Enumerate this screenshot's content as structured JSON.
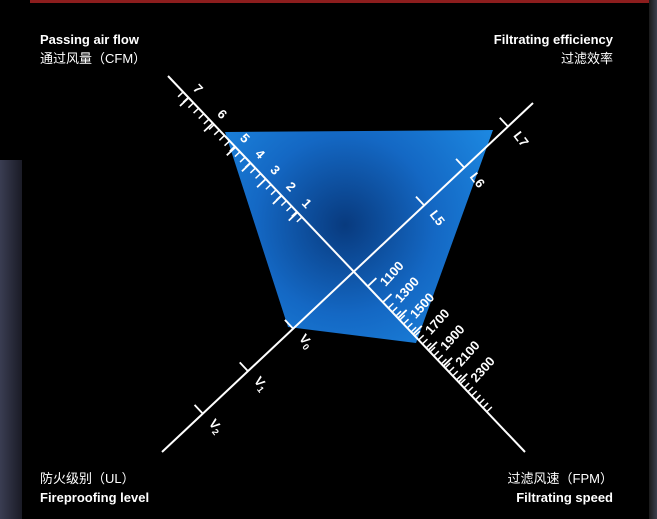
{
  "labels": {
    "top_left": {
      "en": "Passing air flow",
      "zh": "通过风量（CFM）"
    },
    "top_right": {
      "en": "Filtrating efficiency",
      "zh": "过滤效率"
    },
    "bottom_left": {
      "zh": "防火级别（UL）",
      "en": "Fireproofing level"
    },
    "bottom_right": {
      "zh": "过滤风速（FPM）",
      "en": "Filtrating speed"
    }
  },
  "axes": {
    "cfm": [
      "1",
      "2",
      "3",
      "4",
      "5",
      "6",
      "7"
    ],
    "efficiency": [
      "L5",
      "L6",
      "L7"
    ],
    "ul": [
      "V0",
      "V1",
      "V2"
    ],
    "fpm": [
      "1100",
      "1300",
      "1500",
      "1700",
      "1900",
      "2100",
      "2300"
    ]
  },
  "colors": {
    "fill": "#1f8fe6",
    "fill_dark": "#0a3f86",
    "axis": "#ffffff",
    "border": "#8c1d1d"
  }
}
